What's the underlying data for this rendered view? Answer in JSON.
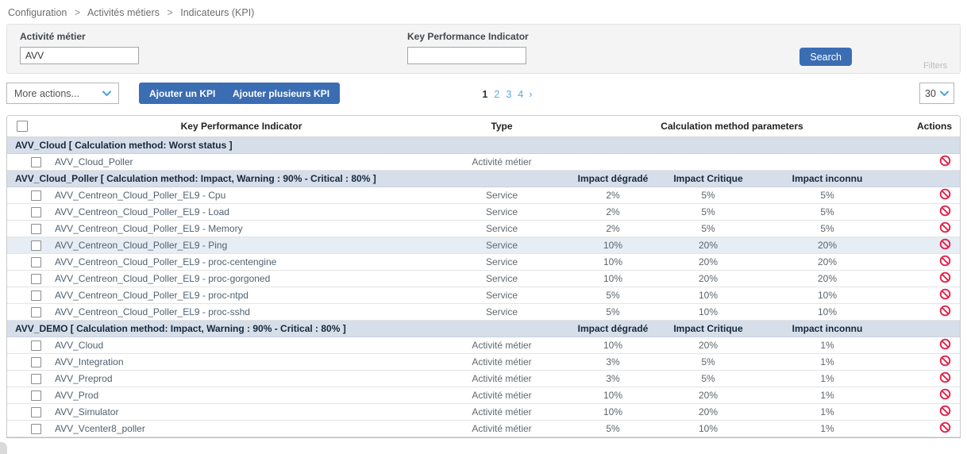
{
  "breadcrumb": {
    "separator": ">",
    "items": [
      {
        "label": "Configuration"
      },
      {
        "label": "Activités métiers"
      },
      {
        "label": "Indicateurs (KPI)"
      }
    ]
  },
  "filter_panel": {
    "activity_label": "Activité métier",
    "activity_value": "AVV",
    "kpi_label": "Key Performance Indicator",
    "kpi_value": "",
    "search_button": "Search",
    "filters_label": "Filters"
  },
  "toolbar": {
    "more_actions_label": "More actions...",
    "add_kpi_button": "Ajouter un KPI",
    "add_multiple_kpi_button": "Ajouter plusieurs KPI",
    "page_size_value": "30",
    "pagination": {
      "current": "1",
      "pages": [
        "2",
        "3",
        "4"
      ],
      "next_symbol": "›"
    }
  },
  "table": {
    "headers": {
      "kpi": "Key Performance Indicator",
      "type": "Type",
      "params": "Calculation method parameters",
      "actions": "Actions"
    },
    "groups": [
      {
        "title": "AVV_Cloud [ Calculation method: Worst status ]",
        "impact_columns": [
          "",
          "",
          ""
        ],
        "rows": [
          {
            "name": "AVV_Cloud_Poller",
            "type": "Activité métier",
            "impacts": [
              "",
              "",
              ""
            ]
          }
        ]
      },
      {
        "title": "AVV_Cloud_Poller [ Calculation method: Impact, Warning : 90% - Critical : 80% ]",
        "impact_columns": [
          "Impact dégradé",
          "Impact Critique",
          "Impact inconnu"
        ],
        "rows": [
          {
            "name": "AVV_Centreon_Cloud_Poller_EL9 - Cpu",
            "type": "Service",
            "impacts": [
              "2%",
              "5%",
              "5%"
            ]
          },
          {
            "name": "AVV_Centreon_Cloud_Poller_EL9 - Load",
            "type": "Service",
            "impacts": [
              "2%",
              "5%",
              "5%"
            ]
          },
          {
            "name": "AVV_Centreon_Cloud_Poller_EL9 - Memory",
            "type": "Service",
            "impacts": [
              "2%",
              "5%",
              "5%"
            ]
          },
          {
            "name": "AVV_Centreon_Cloud_Poller_EL9 - Ping",
            "type": "Service",
            "impacts": [
              "10%",
              "20%",
              "20%"
            ],
            "highlight": true
          },
          {
            "name": "AVV_Centreon_Cloud_Poller_EL9 - proc-centengine",
            "type": "Service",
            "impacts": [
              "10%",
              "20%",
              "20%"
            ]
          },
          {
            "name": "AVV_Centreon_Cloud_Poller_EL9 - proc-gorgoned",
            "type": "Service",
            "impacts": [
              "10%",
              "20%",
              "20%"
            ]
          },
          {
            "name": "AVV_Centreon_Cloud_Poller_EL9 - proc-ntpd",
            "type": "Service",
            "impacts": [
              "5%",
              "10%",
              "10%"
            ]
          },
          {
            "name": "AVV_Centreon_Cloud_Poller_EL9 - proc-sshd",
            "type": "Service",
            "impacts": [
              "5%",
              "10%",
              "10%"
            ]
          }
        ]
      },
      {
        "title": "AVV_DEMO [ Calculation method: Impact, Warning : 90% - Critical : 80% ]",
        "impact_columns": [
          "Impact dégradé",
          "Impact Critique",
          "Impact inconnu"
        ],
        "rows": [
          {
            "name": "AVV_Cloud",
            "type": "Activité métier",
            "impacts": [
              "10%",
              "20%",
              "1%"
            ]
          },
          {
            "name": "AVV_Integration",
            "type": "Activité métier",
            "impacts": [
              "3%",
              "5%",
              "1%"
            ]
          },
          {
            "name": "AVV_Preprod",
            "type": "Activité métier",
            "impacts": [
              "3%",
              "5%",
              "1%"
            ]
          },
          {
            "name": "AVV_Prod",
            "type": "Activité métier",
            "impacts": [
              "10%",
              "20%",
              "1%"
            ]
          },
          {
            "name": "AVV_Simulator",
            "type": "Activité métier",
            "impacts": [
              "10%",
              "20%",
              "1%"
            ]
          },
          {
            "name": "AVV_Vcenter8_poller",
            "type": "Activité métier",
            "impacts": [
              "5%",
              "10%",
              "1%"
            ]
          }
        ]
      }
    ]
  },
  "colors": {
    "button_blue": "#3b6db3",
    "chevron_blue": "#4aa3dd",
    "pagination_active": "#2a3340",
    "pagination_link": "#55abdf",
    "group_header_bg": "#d6dee9",
    "group_header_text": "#16293c",
    "highlight_row_bg": "#e7edf4",
    "ban_icon_red": "#e0284f"
  }
}
